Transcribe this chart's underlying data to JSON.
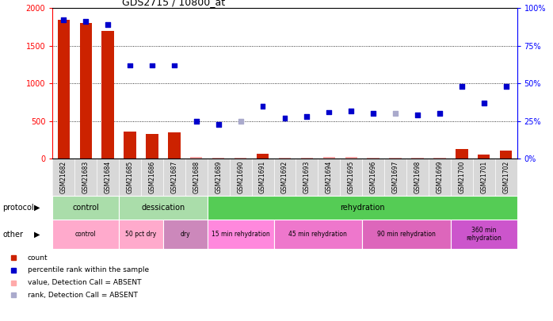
{
  "title": "GDS2715 / 10800_at",
  "samples": [
    "GSM21682",
    "GSM21683",
    "GSM21684",
    "GSM21685",
    "GSM21686",
    "GSM21687",
    "GSM21688",
    "GSM21689",
    "GSM21690",
    "GSM21691",
    "GSM21692",
    "GSM21693",
    "GSM21694",
    "GSM21695",
    "GSM21696",
    "GSM21697",
    "GSM21698",
    "GSM21699",
    "GSM21700",
    "GSM21701",
    "GSM21702"
  ],
  "bar_values": [
    1840,
    1800,
    1700,
    360,
    330,
    355,
    30,
    20,
    20,
    70,
    20,
    20,
    25,
    25,
    20,
    20,
    20,
    20,
    130,
    60,
    110
  ],
  "bar_absent": [
    false,
    false,
    false,
    false,
    false,
    false,
    true,
    true,
    true,
    false,
    true,
    true,
    true,
    true,
    true,
    true,
    true,
    true,
    false,
    false,
    false
  ],
  "rank_pct": [
    92,
    91,
    89,
    62,
    62,
    62,
    25,
    23,
    25,
    35,
    27,
    28,
    31,
    32,
    30,
    30,
    29,
    30,
    48,
    37,
    48
  ],
  "rank_absent": [
    false,
    false,
    false,
    false,
    false,
    false,
    false,
    false,
    true,
    false,
    false,
    false,
    false,
    false,
    false,
    true,
    false,
    false,
    false,
    false,
    false
  ],
  "ylim_left": [
    0,
    2000
  ],
  "yticks_left": [
    0,
    500,
    1000,
    1500,
    2000
  ],
  "yticks_right_pct": [
    0,
    25,
    50,
    75,
    100
  ],
  "bar_color": "#cc2200",
  "bar_absent_color": "#ffaaaa",
  "rank_color": "#0000cc",
  "rank_absent_color": "#aaaacc",
  "proto_spans": [
    {
      "label": "control",
      "start": 0,
      "end": 3,
      "color": "#aaddaa"
    },
    {
      "label": "dessication",
      "start": 3,
      "end": 7,
      "color": "#aaddaa"
    },
    {
      "label": "rehydration",
      "start": 7,
      "end": 21,
      "color": "#55cc55"
    }
  ],
  "other_spans": [
    {
      "label": "control",
      "start": 0,
      "end": 3,
      "color": "#ffaacc"
    },
    {
      "label": "50 pct dry",
      "start": 3,
      "end": 5,
      "color": "#ffaacc"
    },
    {
      "label": "dry",
      "start": 5,
      "end": 7,
      "color": "#cc88bb"
    },
    {
      "label": "15 min rehydration",
      "start": 7,
      "end": 10,
      "color": "#ff88dd"
    },
    {
      "label": "45 min rehydration",
      "start": 10,
      "end": 14,
      "color": "#ee77cc"
    },
    {
      "label": "90 min rehydration",
      "start": 14,
      "end": 18,
      "color": "#dd66bb"
    },
    {
      "label": "360 min\nrehydration",
      "start": 18,
      "end": 21,
      "color": "#cc55cc"
    }
  ],
  "legend_items": [
    {
      "color": "#cc2200",
      "label": "count"
    },
    {
      "color": "#0000cc",
      "label": "percentile rank within the sample"
    },
    {
      "color": "#ffaaaa",
      "label": "value, Detection Call = ABSENT"
    },
    {
      "color": "#aaaacc",
      "label": "rank, Detection Call = ABSENT"
    }
  ]
}
